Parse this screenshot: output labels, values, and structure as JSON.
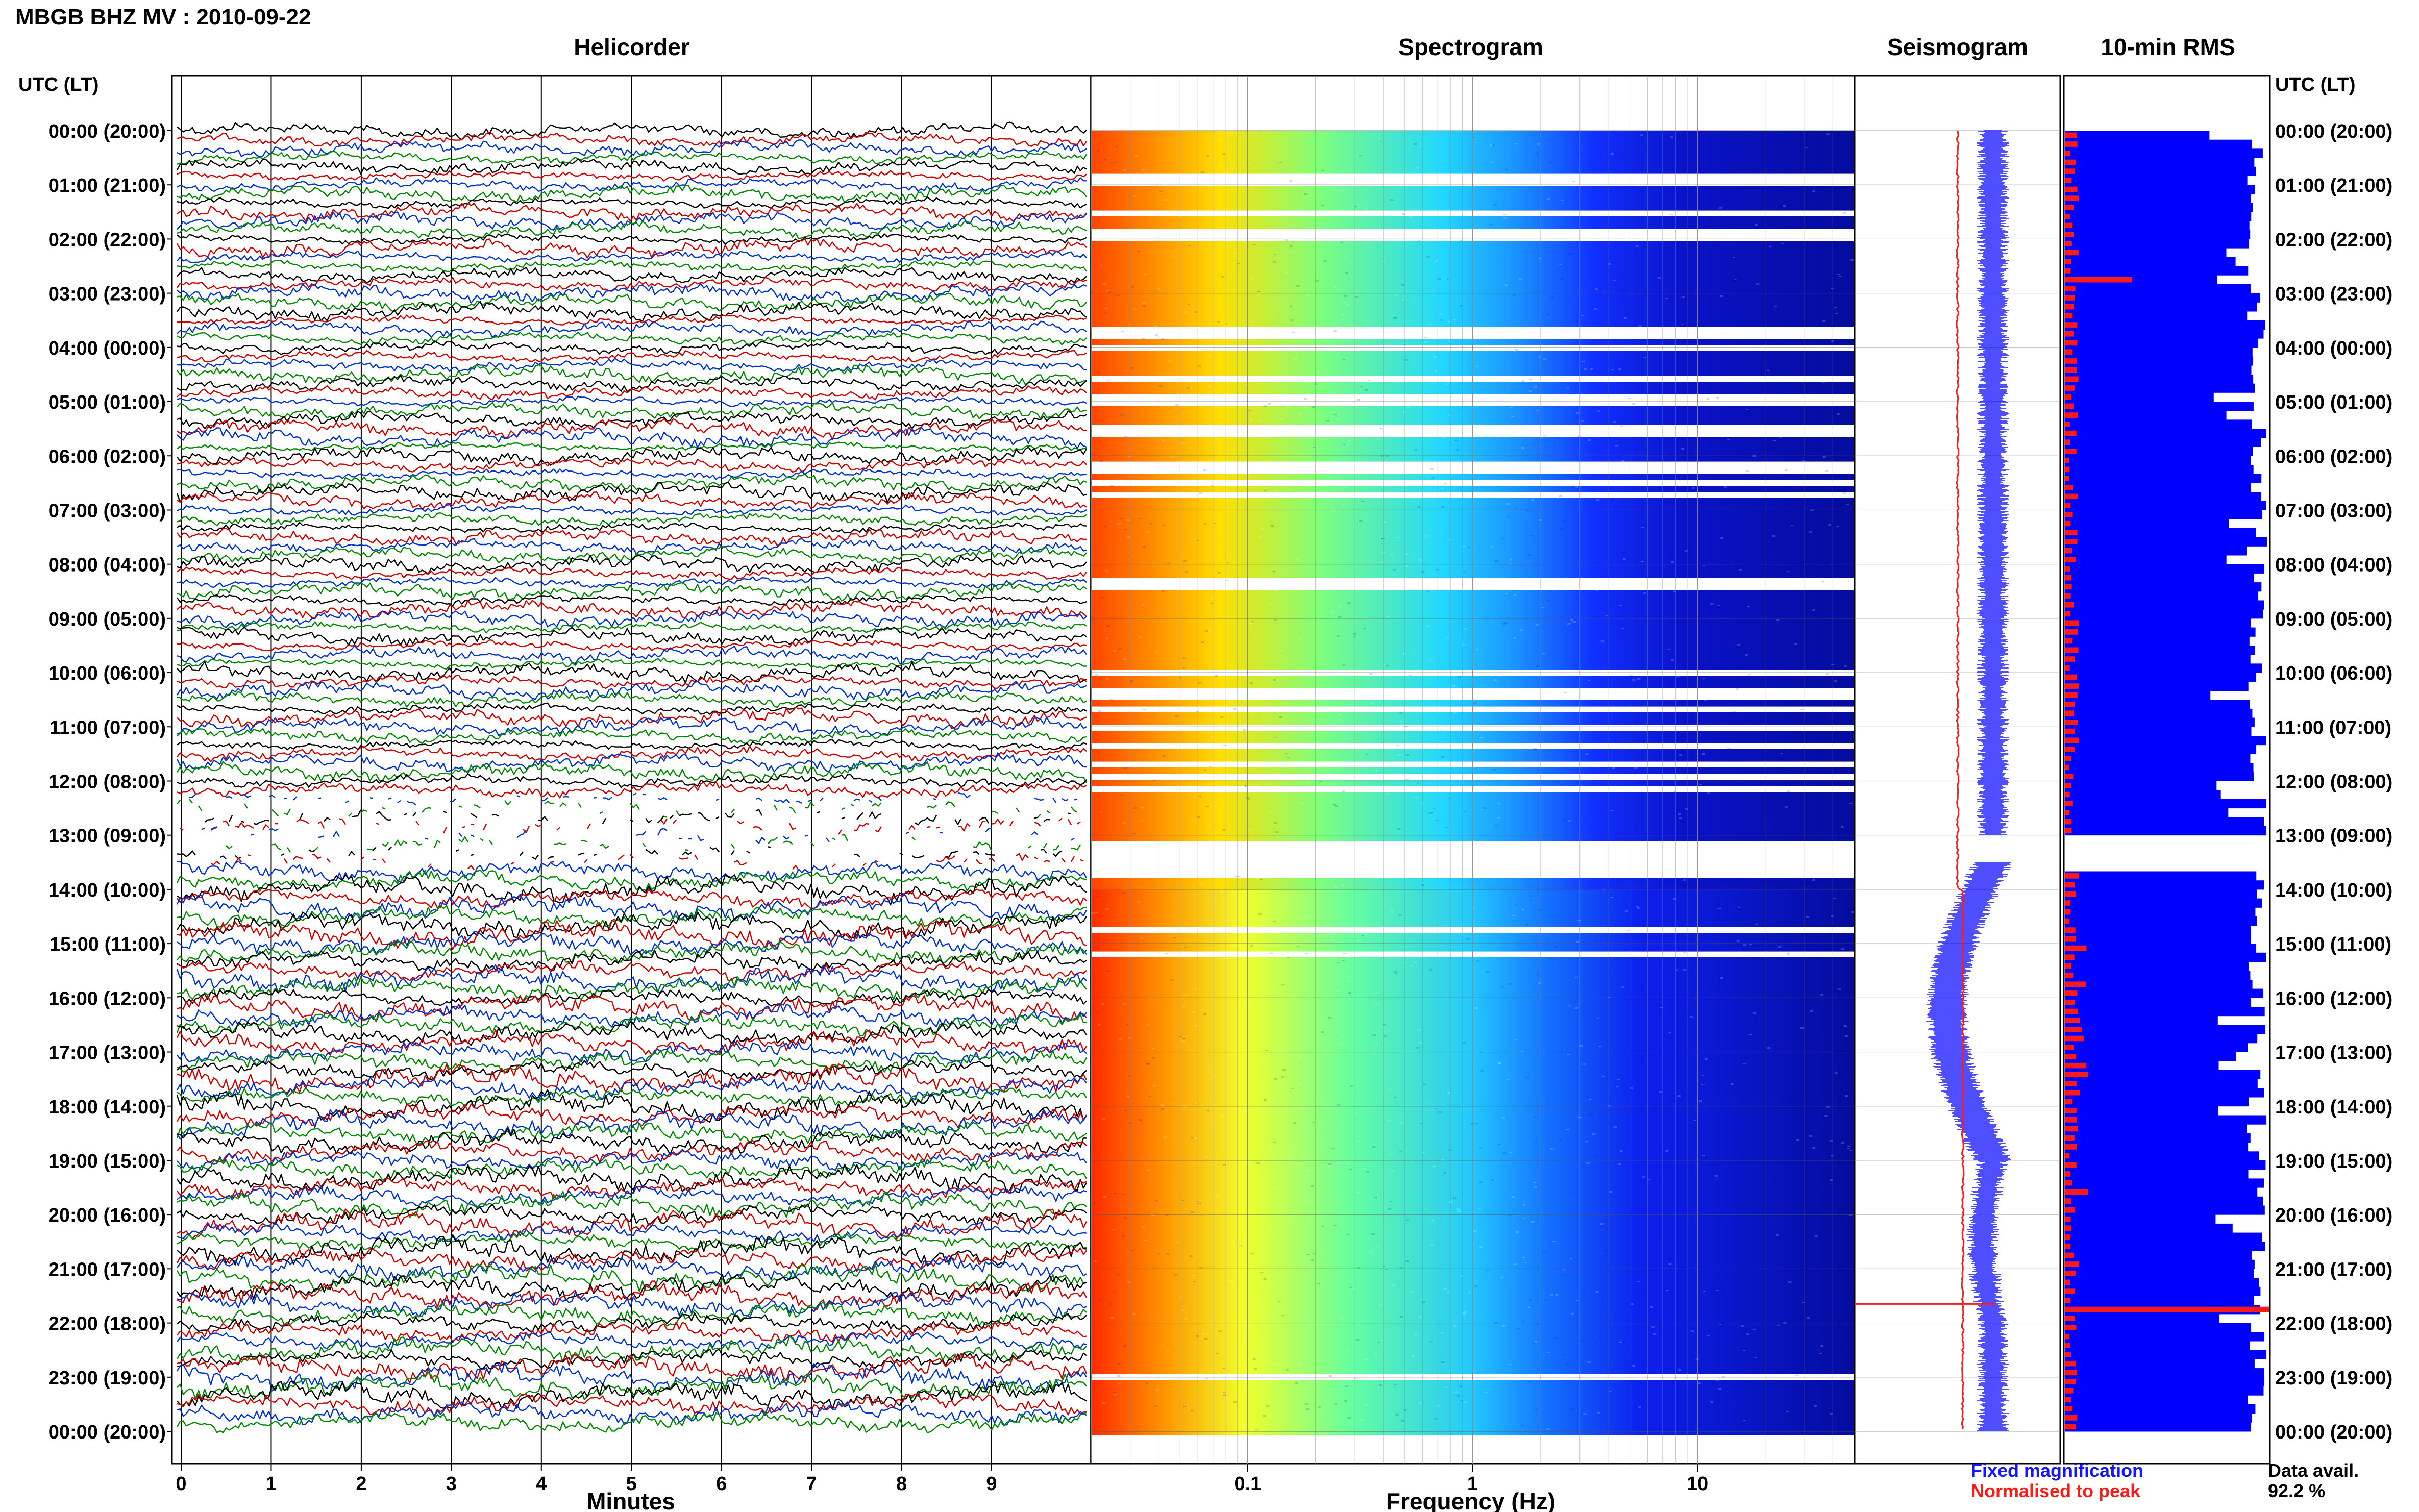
{
  "title": "MBGB BHZ MV : 2010-09-22",
  "time_axis_label": "UTC (LT)",
  "panels": {
    "helicorder": "Helicorder",
    "spectrogram": "Spectrogram",
    "seismogram": "Seismogram",
    "rms": "10-min RMS"
  },
  "legend": {
    "fixed": "Fixed magnification",
    "normalised": "Normalised to peak",
    "data_avail_label": "Data avail.",
    "data_avail_value": "92.2 %"
  },
  "colors": {
    "fixed": "#1515ff",
    "normalised": "#ff1a1a",
    "rms_fill": "#0000ff",
    "trace_colors": [
      "#000000",
      "#cc0000",
      "#0033cc",
      "#008800"
    ]
  },
  "chart_data": [
    {
      "type": "line",
      "name": "helicorder",
      "title": "Helicorder",
      "xlabel": "Minutes",
      "xlim": [
        0,
        10
      ],
      "x_ticks": [
        "0",
        "1",
        "2",
        "3",
        "4",
        "5",
        "6",
        "7",
        "8",
        "9"
      ],
      "y_ticks": [
        "00:00 (20:00)",
        "01:00 (21:00)",
        "02:00 (22:00)",
        "03:00 (23:00)",
        "04:00 (00:00)",
        "05:00 (01:00)",
        "06:00 (02:00)",
        "07:00 (03:00)",
        "08:00 (04:00)",
        "09:00 (05:00)",
        "10:00 (06:00)",
        "11:00 (07:00)",
        "12:00 (08:00)",
        "13:00 (09:00)",
        "14:00 (10:00)",
        "15:00 (11:00)",
        "16:00 (12:00)",
        "17:00 (13:00)",
        "18:00 (14:00)",
        "19:00 (15:00)",
        "20:00 (16:00)",
        "21:00 (17:00)",
        "22:00 (18:00)",
        "23:00 (19:00)",
        "00:00 (20:00)"
      ],
      "lines_per_hour": 6,
      "gaps_hours": [
        [
          12.2,
          13.6
        ]
      ],
      "grid": true
    },
    {
      "type": "heatmap",
      "name": "spectrogram",
      "title": "Spectrogram",
      "xlabel": "Frequency (Hz)",
      "x_scale": "log",
      "xlim": [
        0.02,
        50
      ],
      "x_ticks": [
        "0.1",
        "1",
        "10"
      ],
      "time_range_hours": [
        0,
        24
      ],
      "gaps_hours": [
        [
          1.85,
          2.0
        ],
        [
          13.0,
          13.7
        ]
      ],
      "colormap": "jet",
      "grid": true
    },
    {
      "type": "line",
      "name": "seismogram",
      "title": "Seismogram",
      "series": [
        {
          "name": "Fixed magnification",
          "color": "#1515ff"
        },
        {
          "name": "Normalised to peak",
          "color": "#ff1a1a"
        }
      ],
      "time_range_hours": [
        0,
        24
      ]
    },
    {
      "type": "bar",
      "name": "rms",
      "title": "10-min RMS",
      "orientation": "horizontal",
      "interval_minutes": 10,
      "time_range_hours": [
        0,
        24
      ],
      "y_ticks": [
        "00:00 (20:00)",
        "01:00 (21:00)",
        "02:00 (22:00)",
        "03:00 (23:00)",
        "04:00 (00:00)",
        "05:00 (01:00)",
        "06:00 (02:00)",
        "07:00 (03:00)",
        "08:00 (04:00)",
        "09:00 (05:00)",
        "10:00 (06:00)",
        "11:00 (07:00)",
        "12:00 (08:00)",
        "13:00 (09:00)",
        "14:00 (10:00)",
        "15:00 (11:00)",
        "16:00 (12:00)",
        "17:00 (13:00)",
        "18:00 (14:00)",
        "19:00 (15:00)",
        "20:00 (16:00)",
        "21:00 (17:00)",
        "22:00 (18:00)",
        "23:00 (19:00)",
        "00:00 (20:00)"
      ],
      "fixed_relative": 0.94,
      "normalised_spikes": [
        {
          "hour": 2.6,
          "relative": 0.33
        },
        {
          "hour": 21.65,
          "relative": 1.0
        }
      ],
      "data_availability_percent": 92.2
    }
  ]
}
